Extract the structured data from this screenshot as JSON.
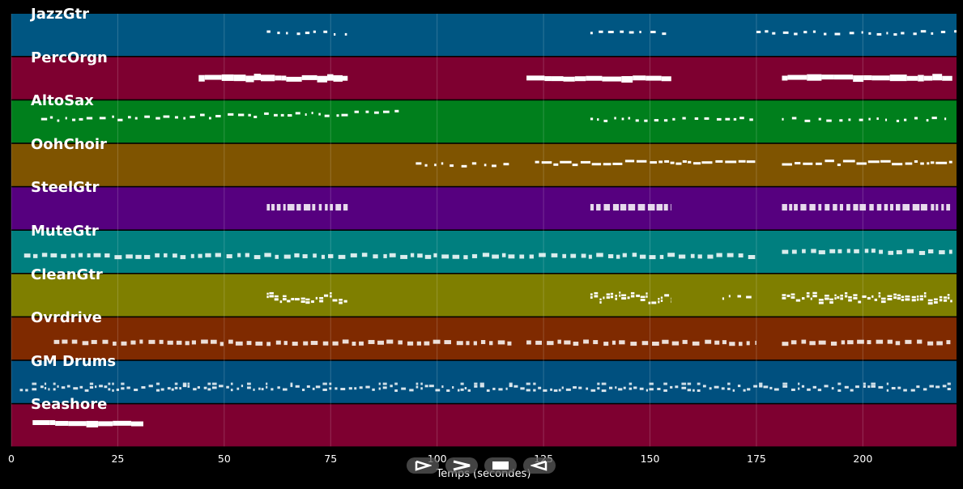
{
  "chart_data": {
    "type": "piano-roll-timeline",
    "xlabel": "Temps (secondes)",
    "xlim": [
      0,
      222
    ],
    "xticks": [
      0,
      25,
      50,
      75,
      100,
      125,
      150,
      175,
      200
    ],
    "grid": true,
    "tracks": [
      {
        "name": "JazzGtr",
        "color": "#005682",
        "segments": [
          {
            "x": [
              60,
              79
            ],
            "y": 0.3,
            "style": "sparse"
          },
          {
            "x": 136,
            "x2": 155,
            "y": 0.3,
            "style": "sparse"
          },
          {
            "x": [
              175,
              222
            ],
            "y": 0.3,
            "style": "sparse"
          }
        ]
      },
      {
        "name": "PercOrgn",
        "color": "#7e0030",
        "segments": [
          {
            "x": [
              44,
              79
            ],
            "y": 0.5,
            "style": "solid"
          },
          {
            "x": [
              121,
              155
            ],
            "y": 0.5,
            "style": "solid"
          },
          {
            "x": [
              181,
              221
            ],
            "y": 0.5,
            "style": "solid"
          }
        ]
      },
      {
        "name": "AltoSax",
        "color": "#007f1c",
        "segments": [
          {
            "x": [
              7,
              91
            ],
            "y": 0.45,
            "style": "rising"
          },
          {
            "x": [
              136,
              175
            ],
            "y": 0.45,
            "style": "sparse"
          },
          {
            "x": [
              181,
              220
            ],
            "y": 0.45,
            "style": "sparse"
          }
        ]
      },
      {
        "name": "OohChoir",
        "color": "#7f5400",
        "segments": [
          {
            "x": [
              95,
              118
            ],
            "y": 0.5,
            "style": "sparse"
          },
          {
            "x": [
              123,
              175
            ],
            "y": 0.45,
            "style": "dense"
          },
          {
            "x": [
              181,
              221
            ],
            "y": 0.45,
            "style": "dense"
          }
        ]
      },
      {
        "name": "SteelGtr",
        "color": "#56007f",
        "segments": [
          {
            "x": [
              60,
              79
            ],
            "y": 0.55,
            "style": "blocks"
          },
          {
            "x": [
              136,
              155
            ],
            "y": 0.55,
            "style": "blocks"
          },
          {
            "x": [
              181,
              221
            ],
            "y": 0.55,
            "style": "blocks"
          }
        ]
      },
      {
        "name": "MuteGtr",
        "color": "#007f7f",
        "segments": [
          {
            "x": [
              3,
              175
            ],
            "y": 0.6,
            "style": "dashes"
          },
          {
            "x": [
              181,
              221
            ],
            "y": 0.5,
            "style": "dashes"
          }
        ]
      },
      {
        "name": "CleanGtr",
        "color": "#7f7f00",
        "segments": [
          {
            "x": [
              60,
              79
            ],
            "y": 0.6,
            "style": "chords"
          },
          {
            "x": [
              136,
              155
            ],
            "y": 0.6,
            "style": "chords"
          },
          {
            "x": [
              167,
              175
            ],
            "y": 0.55,
            "style": "sparse"
          },
          {
            "x": [
              181,
              221
            ],
            "y": 0.6,
            "style": "chords"
          }
        ]
      },
      {
        "name": "Ovrdrive",
        "color": "#7f2a00",
        "segments": [
          {
            "x": [
              10,
              118
            ],
            "y": 0.6,
            "style": "dashes"
          },
          {
            "x": [
              121,
              175
            ],
            "y": 0.6,
            "style": "dashes"
          },
          {
            "x": [
              181,
              221
            ],
            "y": 0.6,
            "style": "dashes"
          }
        ]
      },
      {
        "name": "GM Drums",
        "color": "#00507f",
        "segments": [
          {
            "x": [
              2,
              221
            ],
            "y": 0.65,
            "style": "drums"
          }
        ]
      },
      {
        "name": "Seashore",
        "color": "#7e0030",
        "segments": [
          {
            "x": [
              5,
              31
            ],
            "y": 0.45,
            "style": "solid"
          }
        ]
      }
    ]
  },
  "controls": [
    {
      "name": "play",
      "icon": "play-icon"
    },
    {
      "name": "fast-forward",
      "icon": "fast-forward-icon"
    },
    {
      "name": "stop",
      "icon": "stop-icon"
    },
    {
      "name": "rewind",
      "icon": "rewind-icon"
    }
  ]
}
